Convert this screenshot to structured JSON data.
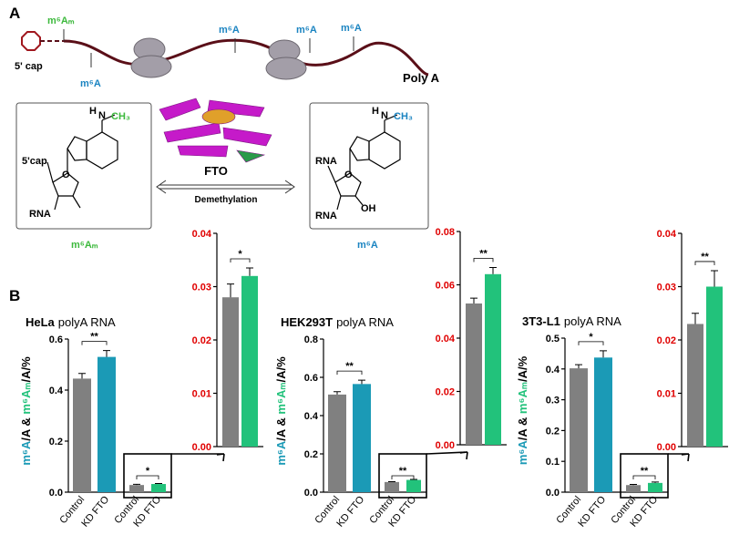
{
  "panel_a": {
    "label": "A",
    "cap_mod": "m⁶Aₘ",
    "cap": "5' cap",
    "mods": [
      "m⁶A",
      "m⁶A",
      "m⁶A",
      "m⁶A"
    ],
    "polya": "Poly A",
    "left_structure": {
      "ch3": "CH₃",
      "n": "N",
      "h": "H",
      "cap": "5'cap",
      "rna": "RNA",
      "o": "O",
      "name": "m⁶Aₘ"
    },
    "enzyme": "FTO",
    "reaction": "Demethylation",
    "right_structure": {
      "h": "H",
      "n": "N",
      "ch3": "CH₃",
      "rna_top": "RNA",
      "rna_bottom": "RNA",
      "o": "O",
      "oh": "OH",
      "name": "m⁶A"
    }
  },
  "panel_b": {
    "label": "B"
  },
  "chart_data": [
    {
      "type": "bar",
      "title": {
        "cell": "HeLa",
        "rest": "polyA RNA"
      },
      "ylabel": [
        "m⁶A",
        "/A & ",
        "m⁶Aₘ",
        "/A/%"
      ],
      "categories": [
        "Control",
        "KD FTO",
        "Control",
        "KD FTO"
      ],
      "values": [
        0.445,
        0.53,
        0.028,
        0.032
      ],
      "errors": [
        0.02,
        0.025,
        0.003,
        0.002
      ],
      "colors": [
        "#808080",
        "#1b9ab6",
        "#808080",
        "#22c27b"
      ],
      "ylim": [
        0,
        0.6
      ],
      "yticks": [
        {
          "value": 0,
          "label": "0.0"
        },
        0.2,
        0.4,
        0.6
      ],
      "annotations": [
        "**",
        "*"
      ]
    },
    {
      "type": "bar",
      "values": [
        0.028,
        0.032
      ],
      "errors": [
        0.0025,
        0.0015
      ],
      "colors": [
        "#808080",
        "#22c27b"
      ],
      "tick_color": "#e00000",
      "ylim": [
        0,
        0.04
      ],
      "yticks": [
        {
          "value": 0,
          "label": "0.00"
        },
        {
          "value": 0.01,
          "label": "0.01"
        },
        {
          "value": 0.02,
          "label": "0.02"
        },
        {
          "value": 0.03,
          "label": "0.03"
        },
        {
          "value": 0.04,
          "label": "0.04"
        }
      ],
      "annotations": [
        "*"
      ]
    },
    {
      "type": "bar",
      "title": {
        "cell": "HEK293T",
        "rest": "polyA RNA"
      },
      "ylabel": [
        "m⁶A",
        "/A & ",
        "m⁶Aₘ",
        "/A/%"
      ],
      "categories": [
        "Control",
        "KD FTO",
        "Control",
        "KD FTO"
      ],
      "values": [
        0.51,
        0.565,
        0.053,
        0.064
      ],
      "errors": [
        0.015,
        0.02,
        0.002,
        0.0025
      ],
      "colors": [
        "#808080",
        "#1b9ab6",
        "#808080",
        "#22c27b"
      ],
      "ylim": [
        0,
        0.8
      ],
      "yticks": [
        {
          "value": 0,
          "label": "0.0"
        },
        0.2,
        0.4,
        0.6,
        0.8
      ],
      "annotations": [
        "**",
        "**"
      ]
    },
    {
      "type": "bar",
      "values": [
        0.053,
        0.064
      ],
      "errors": [
        0.002,
        0.0025
      ],
      "colors": [
        "#808080",
        "#22c27b"
      ],
      "tick_color": "#e00000",
      "ylim": [
        0,
        0.08
      ],
      "yticks": [
        {
          "value": 0,
          "label": "0.00"
        },
        {
          "value": 0.02,
          "label": "0.02"
        },
        {
          "value": 0.04,
          "label": "0.04"
        },
        {
          "value": 0.06,
          "label": "0.06"
        },
        {
          "value": 0.08,
          "label": "0.08"
        }
      ],
      "annotations": [
        "**"
      ]
    },
    {
      "type": "bar",
      "title": {
        "cell": "3T3-L1",
        "rest": "polyA RNA"
      },
      "ylabel": [
        "m⁶A",
        "/A & ",
        "m⁶Aₘ",
        "/A/%"
      ],
      "categories": [
        "Control",
        "KD FTO",
        "Control",
        "KD FTO"
      ],
      "values": [
        0.402,
        0.437,
        0.023,
        0.03
      ],
      "errors": [
        0.012,
        0.022,
        0.002,
        0.003
      ],
      "colors": [
        "#808080",
        "#1b9ab6",
        "#808080",
        "#22c27b"
      ],
      "ylim": [
        0,
        0.5
      ],
      "yticks": [
        {
          "value": 0,
          "label": "0.0"
        },
        0.1,
        0.2,
        0.3,
        0.4,
        0.5
      ],
      "annotations": [
        "*",
        "**"
      ]
    },
    {
      "type": "bar",
      "values": [
        0.023,
        0.03
      ],
      "errors": [
        0.002,
        0.003
      ],
      "colors": [
        "#808080",
        "#22c27b"
      ],
      "tick_color": "#e00000",
      "ylim": [
        0,
        0.04
      ],
      "yticks": [
        {
          "value": 0,
          "label": "0.00"
        },
        {
          "value": 0.01,
          "label": "0.01"
        },
        {
          "value": 0.02,
          "label": "0.02"
        },
        {
          "value": 0.03,
          "label": "0.03"
        },
        {
          "value": 0.04,
          "label": "0.04"
        }
      ],
      "annotations": [
        "**"
      ]
    }
  ]
}
